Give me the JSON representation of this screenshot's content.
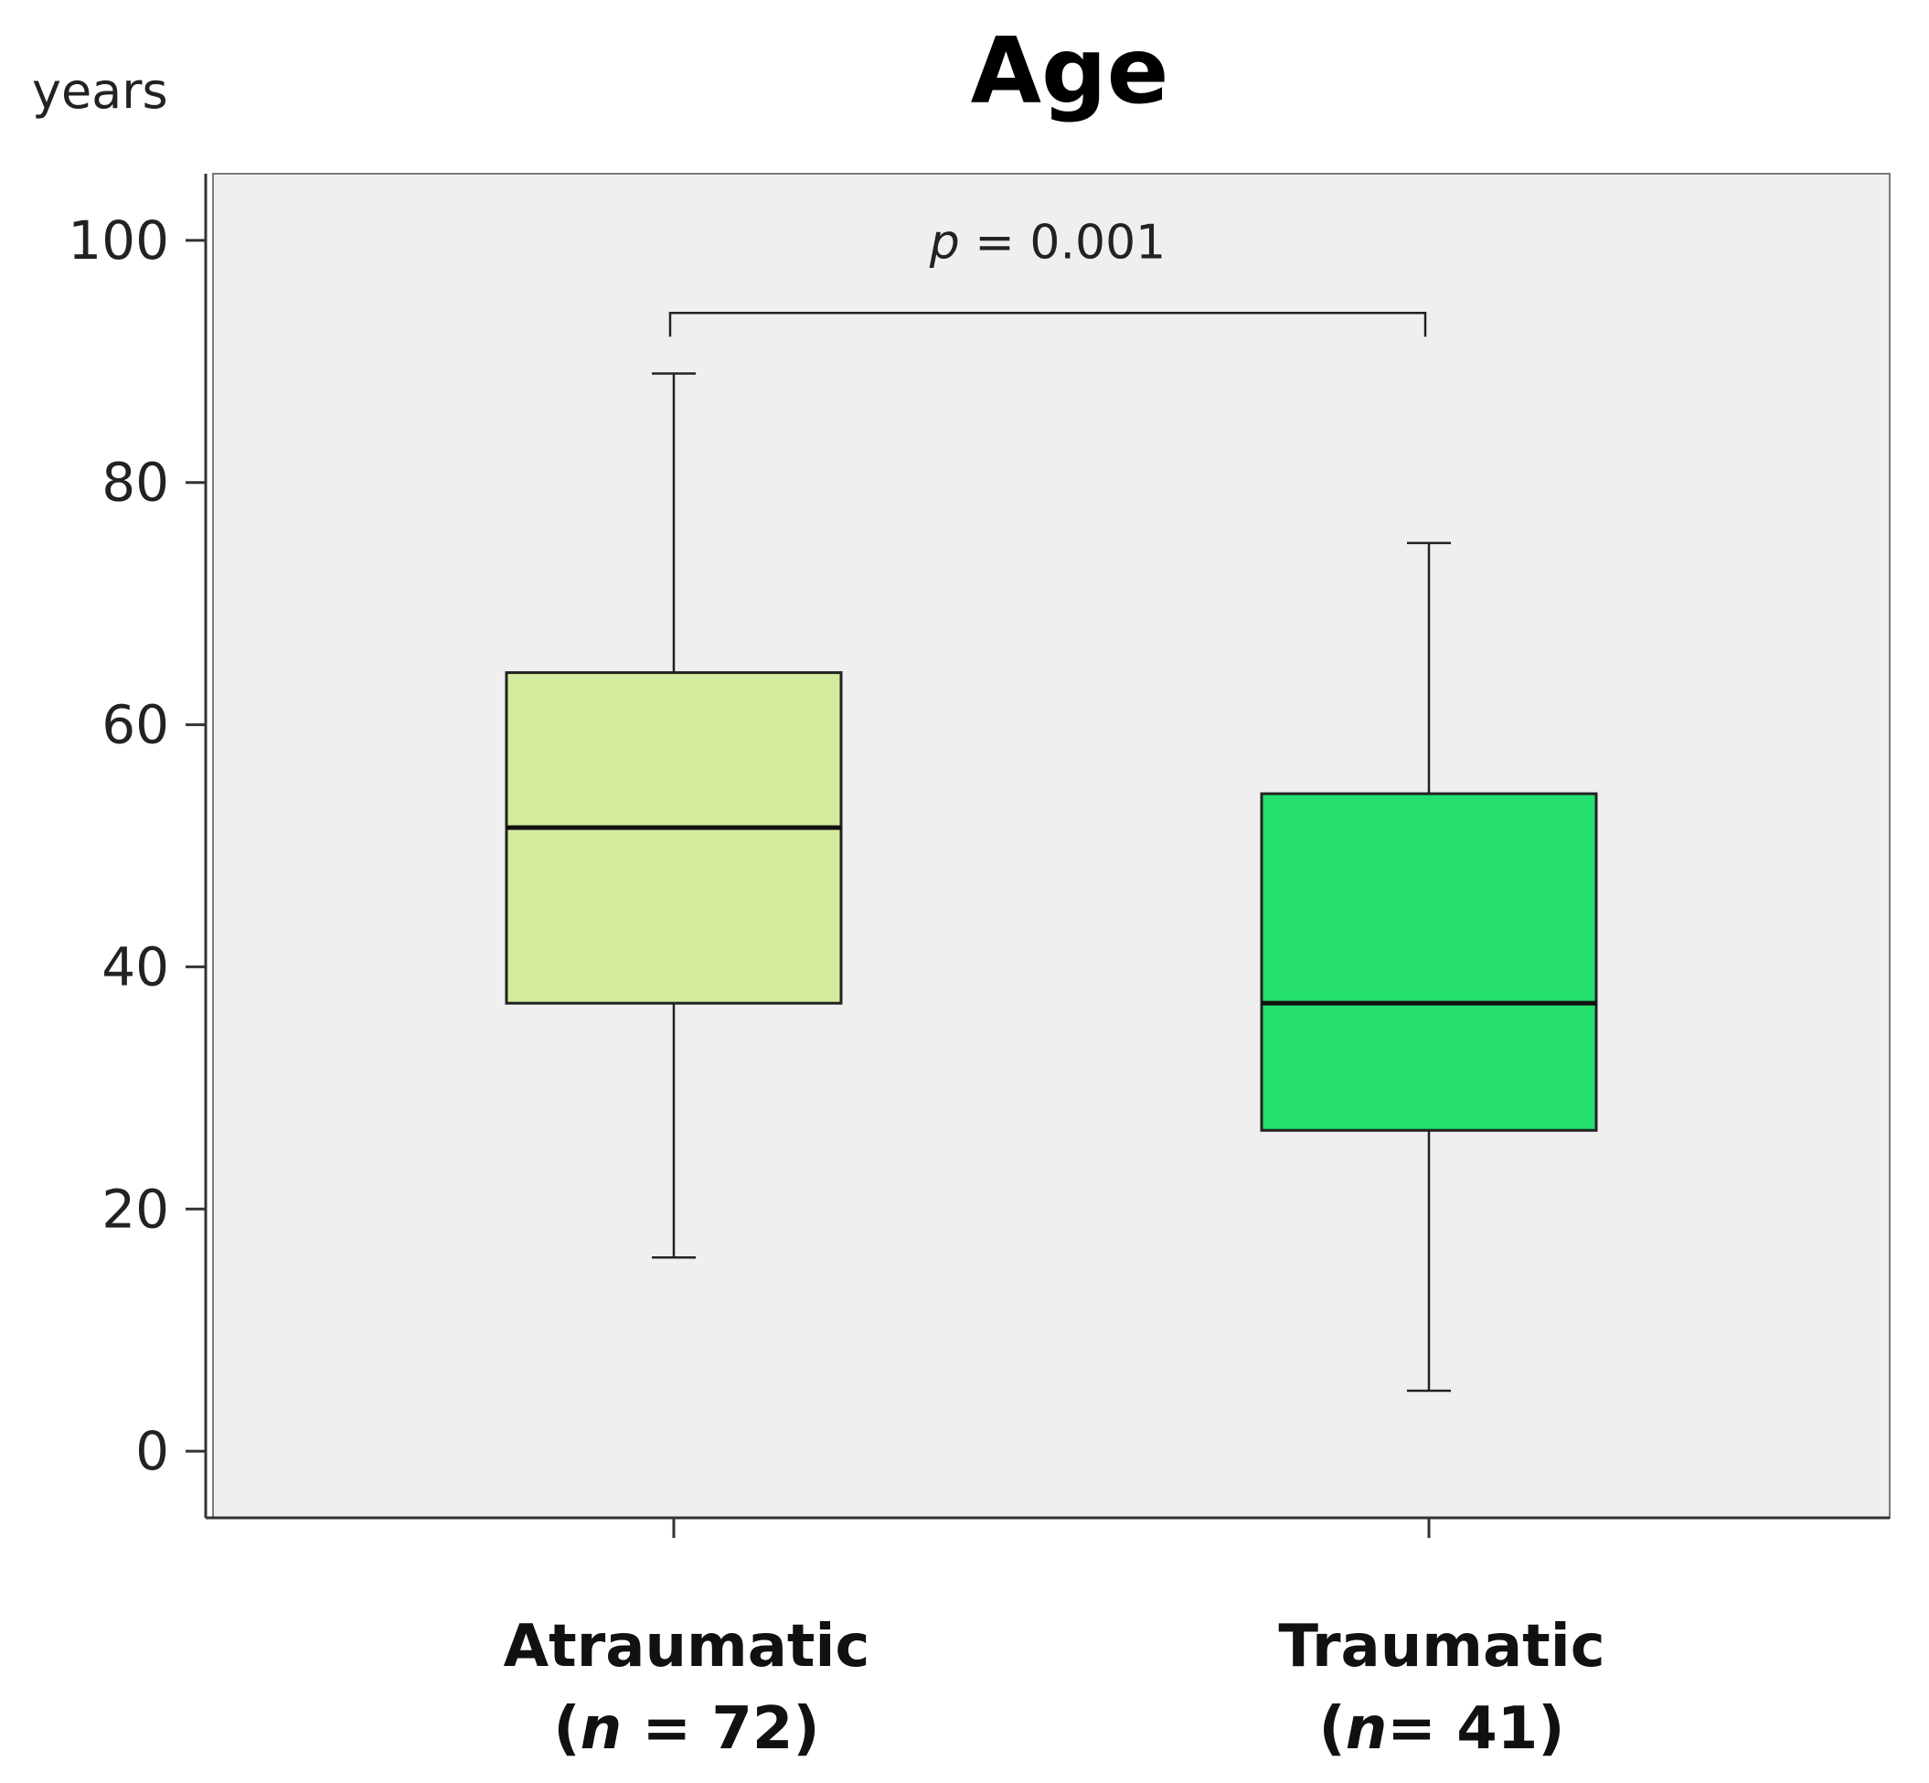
{
  "chart_data": {
    "type": "boxplot",
    "title": "Age",
    "ylabel": "years",
    "xlabel": "",
    "ylim": [
      -5.5,
      105.5
    ],
    "yticks": [
      0,
      20,
      40,
      60,
      80,
      100
    ],
    "ytick_labels": [
      "0",
      "20",
      "40",
      "60",
      "80",
      "100"
    ],
    "grid": false,
    "background": "#efefef",
    "categories": [
      {
        "name": "Atraumatic",
        "n_label": "(n = 72)",
        "n_prefix": "(",
        "n_symbol": "n",
        "n_suffix": " = 72)",
        "whisker_low": 16,
        "q1": 37,
        "median": 51.5,
        "q3": 64.3,
        "whisker_high": 89,
        "color": "#d4eb9d"
      },
      {
        "name": "Traumatic",
        "n_label": "(n= 41)",
        "n_prefix": "(",
        "n_symbol": "n",
        "n_suffix": "= 41)",
        "whisker_low": 5,
        "q1": 26.5,
        "median": 37,
        "q3": 54.3,
        "whisker_high": 75,
        "color": "#25e06f"
      }
    ],
    "annotation": {
      "p_symbol": "p",
      "p_rest": " = 0.001",
      "bracket_y": 94
    }
  }
}
